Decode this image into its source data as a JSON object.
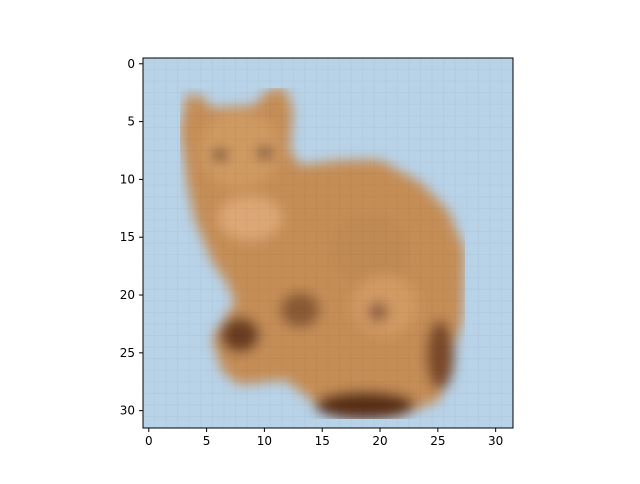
{
  "image": {
    "subject": "pixelated-cat",
    "grid_size": [
      32,
      32
    ],
    "interpolation": "nearest",
    "background_color": "#b8d2e8",
    "cat_colors": {
      "light": "#d6a46f",
      "mid": "#c08a55",
      "dark": "#8a5a35",
      "shadow": "#4a2a18"
    }
  },
  "axes": {
    "x_ticks": [
      "0",
      "5",
      "10",
      "15",
      "20",
      "25",
      "30"
    ],
    "y_ticks": [
      "0",
      "5",
      "10",
      "15",
      "20",
      "25",
      "30"
    ],
    "xlim": [
      -0.5,
      31.5
    ],
    "ylim": [
      31.5,
      -0.5
    ]
  }
}
